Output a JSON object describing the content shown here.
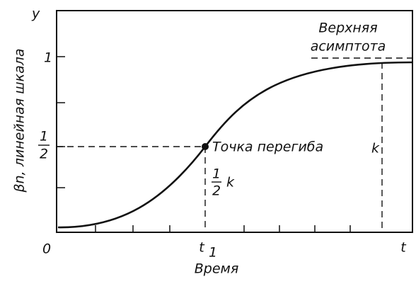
{
  "axes": {
    "y_symbol": "y",
    "y_label": "βn, линейная шкала",
    "x_label": "Время",
    "origin": "0",
    "x_end": "t",
    "x_mark": "t",
    "x_mark_sub": "1",
    "y_one": "1",
    "y_half_num": "1",
    "y_half_den": "2"
  },
  "annotations": {
    "inflection": "Точка перегиба",
    "k": "k",
    "half_k_num": "1",
    "half_k_den": "2",
    "half_k_k": "k",
    "asymptote_line1": "Верхняя",
    "asymptote_line2": "асимптота"
  }
}
